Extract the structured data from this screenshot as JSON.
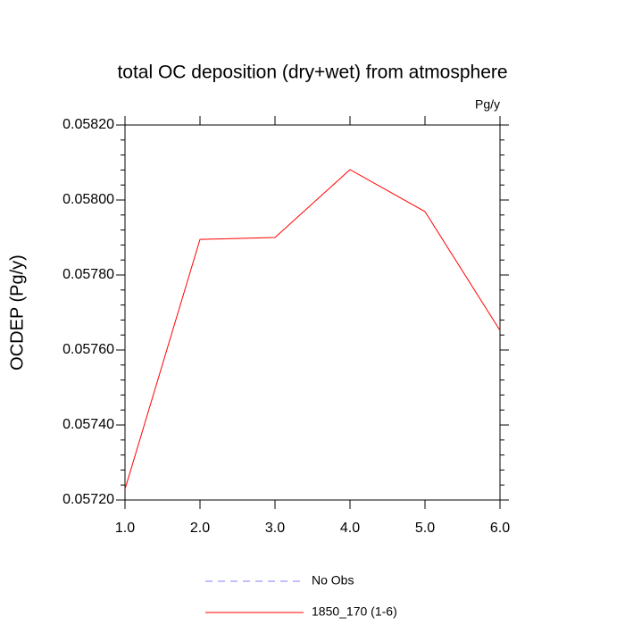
{
  "chart_data": {
    "type": "line",
    "title": "total OC deposition (dry+wet) from atmosphere",
    "units": "Pg/y",
    "y_label": "OCDEP  (Pg/y)",
    "x": [
      1,
      2,
      3,
      4,
      5,
      6
    ],
    "series": [
      {
        "name": "No Obs",
        "color": "#8080ff",
        "dashed": true,
        "values": [
          null,
          null,
          null,
          null,
          null,
          null
        ]
      },
      {
        "name": "1850_170 (1-6)",
        "color": "#ff0000",
        "dashed": false,
        "values": [
          0.057229,
          0.057895,
          0.0579,
          0.058081,
          0.057969,
          0.057652
        ]
      }
    ],
    "xlim": [
      1,
      6
    ],
    "xticks": [
      {
        "value": 1,
        "label": "1.0"
      },
      {
        "value": 2,
        "label": "2.0"
      },
      {
        "value": 3,
        "label": "3.0"
      },
      {
        "value": 4,
        "label": "4.0"
      },
      {
        "value": 5,
        "label": "5.0"
      },
      {
        "value": 6,
        "label": "6.0"
      }
    ],
    "ylim": [
      0.0572,
      0.0582
    ],
    "yticks": [
      {
        "value": 0.0572,
        "label": "0.05720"
      },
      {
        "value": 0.0574,
        "label": "0.05740"
      },
      {
        "value": 0.0576,
        "label": "0.05760"
      },
      {
        "value": 0.0578,
        "label": "0.05780"
      },
      {
        "value": 0.058,
        "label": "0.05800"
      },
      {
        "value": 0.0582,
        "label": "0.05820"
      }
    ],
    "grid": false
  }
}
